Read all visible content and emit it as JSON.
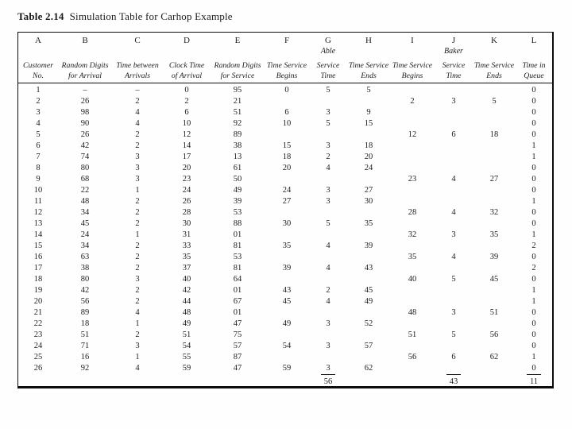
{
  "page": {
    "title_label": "Table 2.14",
    "title_text": "Simulation Table for Carhop Example"
  },
  "table": {
    "column_letters": [
      "A",
      "B",
      "C",
      "D",
      "E",
      "F",
      "G",
      "H",
      "I",
      "J",
      "K",
      "L"
    ],
    "group_able": "Able",
    "group_baker": "Baker",
    "column_headers": [
      [
        "Customer",
        "No."
      ],
      [
        "Random Digits",
        "for Arrival"
      ],
      [
        "Time between",
        "Arrivals"
      ],
      [
        "Clock Time",
        "of Arrival"
      ],
      [
        "Random Digits",
        "for Service"
      ],
      [
        "Time Service",
        "Begins"
      ],
      [
        "Service",
        "Time"
      ],
      [
        "Time Service",
        "Ends"
      ],
      [
        "Time Service",
        "Begins"
      ],
      [
        "Service",
        "Time"
      ],
      [
        "Time Service",
        "Ends"
      ],
      [
        "Time in",
        "Queue"
      ]
    ],
    "rows": [
      [
        "1",
        "–",
        "–",
        "0",
        "95",
        "0",
        "5",
        "5",
        "",
        "",
        "",
        "0"
      ],
      [
        "2",
        "26",
        "2",
        "2",
        "21",
        "",
        "",
        "",
        "2",
        "3",
        "5",
        "0"
      ],
      [
        "3",
        "98",
        "4",
        "6",
        "51",
        "6",
        "3",
        "9",
        "",
        "",
        "",
        "0"
      ],
      [
        "4",
        "90",
        "4",
        "10",
        "92",
        "10",
        "5",
        "15",
        "",
        "",
        "",
        "0"
      ],
      [
        "5",
        "26",
        "2",
        "12",
        "89",
        "",
        "",
        "",
        "12",
        "6",
        "18",
        "0"
      ],
      [
        "6",
        "42",
        "2",
        "14",
        "38",
        "15",
        "3",
        "18",
        "",
        "",
        "",
        "1"
      ],
      [
        "7",
        "74",
        "3",
        "17",
        "13",
        "18",
        "2",
        "20",
        "",
        "",
        "",
        "1"
      ],
      [
        "8",
        "80",
        "3",
        "20",
        "61",
        "20",
        "4",
        "24",
        "",
        "",
        "",
        "0"
      ],
      [
        "9",
        "68",
        "3",
        "23",
        "50",
        "",
        "",
        "",
        "23",
        "4",
        "27",
        "0"
      ],
      [
        "10",
        "22",
        "1",
        "24",
        "49",
        "24",
        "3",
        "27",
        "",
        "",
        "",
        "0"
      ],
      [
        "11",
        "48",
        "2",
        "26",
        "39",
        "27",
        "3",
        "30",
        "",
        "",
        "",
        "1"
      ],
      [
        "12",
        "34",
        "2",
        "28",
        "53",
        "",
        "",
        "",
        "28",
        "4",
        "32",
        "0"
      ],
      [
        "13",
        "45",
        "2",
        "30",
        "88",
        "30",
        "5",
        "35",
        "",
        "",
        "",
        "0"
      ],
      [
        "14",
        "24",
        "1",
        "31",
        "01",
        "",
        "",
        "",
        "32",
        "3",
        "35",
        "1"
      ],
      [
        "15",
        "34",
        "2",
        "33",
        "81",
        "35",
        "4",
        "39",
        "",
        "",
        "",
        "2"
      ],
      [
        "16",
        "63",
        "2",
        "35",
        "53",
        "",
        "",
        "",
        "35",
        "4",
        "39",
        "0"
      ],
      [
        "17",
        "38",
        "2",
        "37",
        "81",
        "39",
        "4",
        "43",
        "",
        "",
        "",
        "2"
      ],
      [
        "18",
        "80",
        "3",
        "40",
        "64",
        "",
        "",
        "",
        "40",
        "5",
        "45",
        "0"
      ],
      [
        "19",
        "42",
        "2",
        "42",
        "01",
        "43",
        "2",
        "45",
        "",
        "",
        "",
        "1"
      ],
      [
        "20",
        "56",
        "2",
        "44",
        "67",
        "45",
        "4",
        "49",
        "",
        "",
        "",
        "1"
      ],
      [
        "21",
        "89",
        "4",
        "48",
        "01",
        "",
        "",
        "",
        "48",
        "3",
        "51",
        "0"
      ],
      [
        "22",
        "18",
        "1",
        "49",
        "47",
        "49",
        "3",
        "52",
        "",
        "",
        "",
        "0"
      ],
      [
        "23",
        "51",
        "2",
        "51",
        "75",
        "",
        "",
        "",
        "51",
        "5",
        "56",
        "0"
      ],
      [
        "24",
        "71",
        "3",
        "54",
        "57",
        "54",
        "3",
        "57",
        "",
        "",
        "",
        "0"
      ],
      [
        "25",
        "16",
        "1",
        "55",
        "87",
        "",
        "",
        "",
        "56",
        "6",
        "62",
        "1"
      ],
      [
        "26",
        "92",
        "4",
        "59",
        "47",
        "59",
        "3",
        "62",
        "",
        "",
        "",
        "0"
      ]
    ],
    "totals": [
      "",
      "",
      "",
      "",
      "",
      "",
      "56",
      "",
      "",
      "43",
      "",
      "11"
    ]
  }
}
